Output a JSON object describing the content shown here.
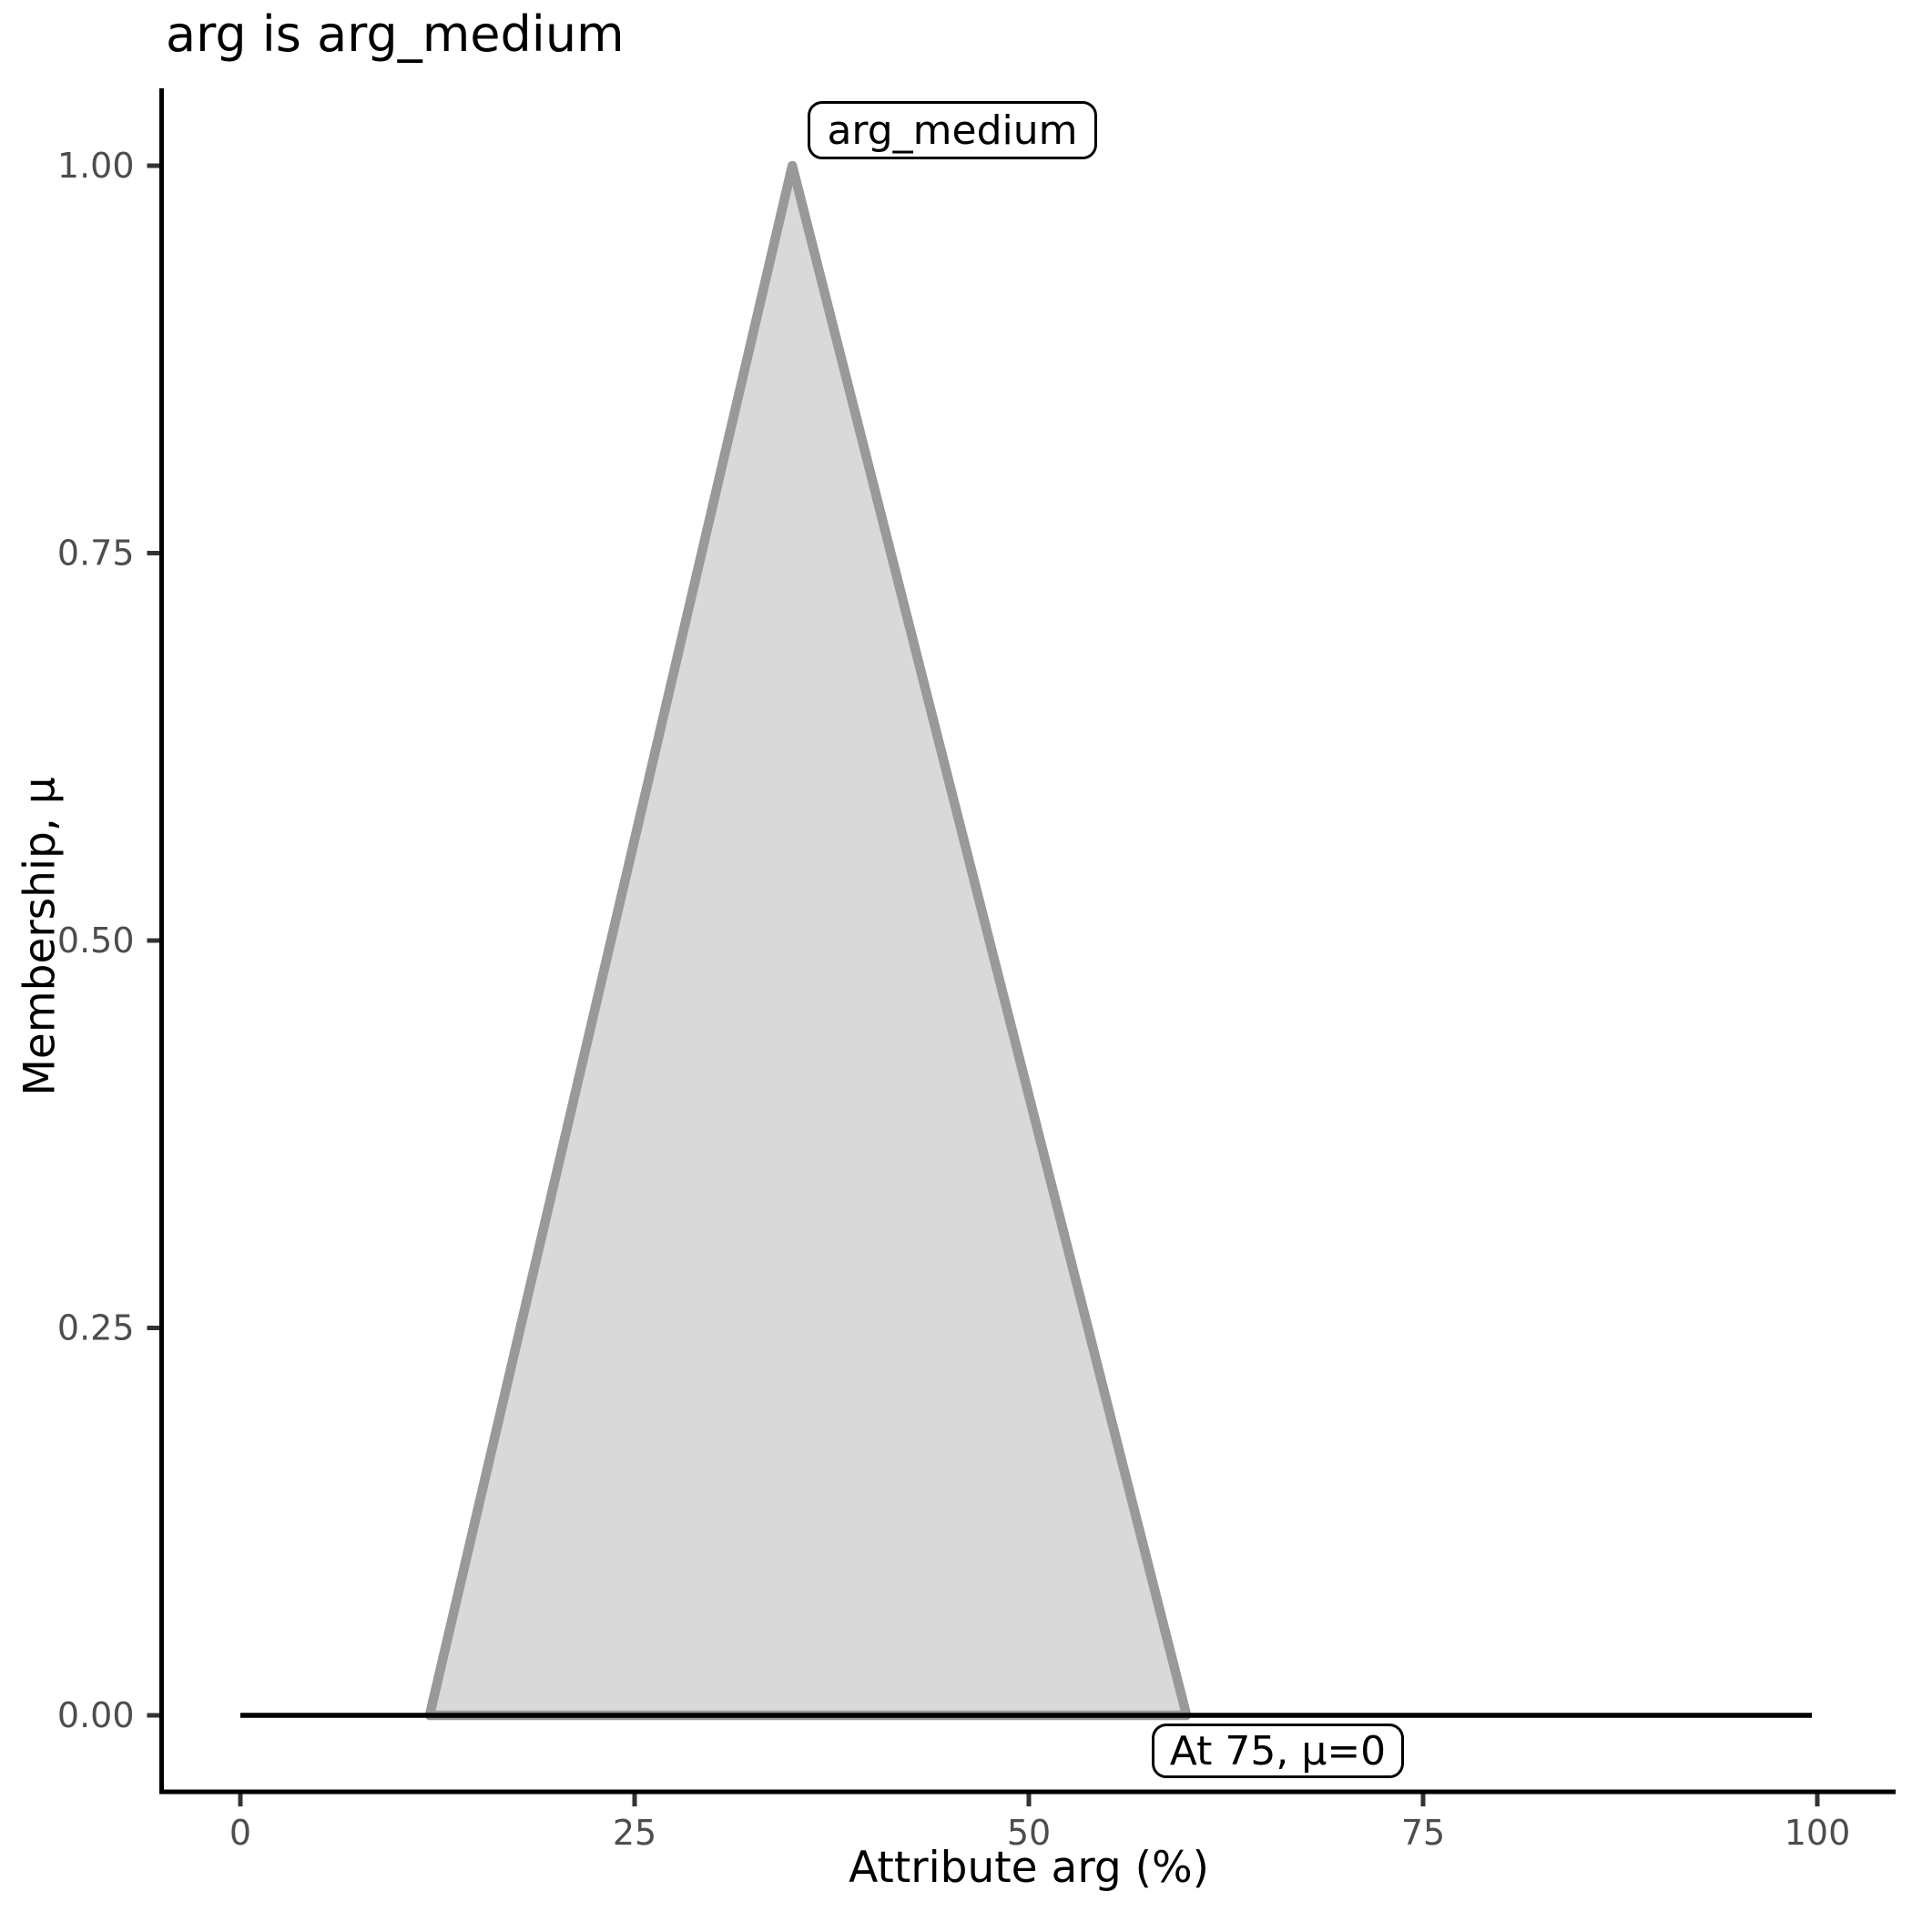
{
  "chart_data": {
    "type": "area",
    "title": "arg is arg_medium",
    "xlabel": "Attribute arg (%)",
    "ylabel": "Membership, μ",
    "xlim": [
      0,
      100
    ],
    "ylim": [
      0,
      1
    ],
    "grid": false,
    "legend_position": "none",
    "x_ticks": {
      "values": [
        0,
        25,
        50,
        75,
        100
      ],
      "labels": [
        "0",
        "25",
        "50",
        "75",
        "100"
      ]
    },
    "y_ticks": {
      "values": [
        0,
        0.25,
        0.5,
        0.75,
        1
      ],
      "labels": [
        "0.00",
        "0.25",
        "0.50",
        "0.75",
        "1.00"
      ]
    },
    "series": [
      {
        "name": "arg_medium",
        "shape": "triangular-membership",
        "points": [
          [
            12,
            0
          ],
          [
            35,
            1
          ],
          [
            60,
            0
          ]
        ],
        "fill": "#d9d9d9",
        "stroke": "#999999"
      },
      {
        "name": "zero-membership-baseline",
        "shape": "line",
        "points": [
          [
            0,
            0
          ],
          [
            100,
            0
          ]
        ],
        "stroke": "#000000"
      }
    ],
    "annotations": [
      {
        "text": "arg_medium",
        "x": 45,
        "y": 1.02
      },
      {
        "text": "At 75, μ=0",
        "x": 66,
        "y": -0.02
      }
    ]
  },
  "colors": {
    "triangle_fill": "#d9d9d9",
    "triangle_stroke": "#999999",
    "axis_line": "#000000",
    "tick_mark": "#333333",
    "tick_label": "#4d4d4d",
    "title_text": "#000000",
    "background": "#ffffff"
  }
}
